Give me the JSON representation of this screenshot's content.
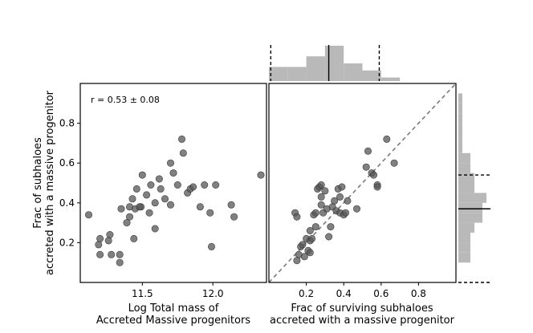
{
  "chart_data": [
    {
      "type": "scatter",
      "annotation": "r = 0.53 ± 0.08",
      "xlabel": [
        "Log Total mass of",
        "Accreted Massive progenitors"
      ],
      "ylabel": [
        "Frac of subhaloes",
        "accreted with a massive progenitor"
      ],
      "xticks": [
        "11.5",
        "12.0"
      ],
      "yticks": [
        "0.2",
        "0.4",
        "0.6",
        "0.8"
      ],
      "xlim": [
        11.06,
        12.38
      ],
      "ylim": [
        0.0,
        1.0
      ],
      "x": [
        11.12,
        11.2,
        11.19,
        11.2,
        11.27,
        11.26,
        11.28,
        11.34,
        11.34,
        11.35,
        11.39,
        11.41,
        11.41,
        11.44,
        11.43,
        11.46,
        11.45,
        11.49,
        11.48,
        11.5,
        11.53,
        11.55,
        11.56,
        11.59,
        11.59,
        11.62,
        11.63,
        11.66,
        11.7,
        11.7,
        11.72,
        11.75,
        11.78,
        11.79,
        11.82,
        11.84,
        11.86,
        11.91,
        11.94,
        11.98,
        11.99,
        12.02,
        12.13,
        12.15,
        12.34
      ],
      "y": [
        0.34,
        0.22,
        0.19,
        0.14,
        0.24,
        0.21,
        0.14,
        0.1,
        0.14,
        0.37,
        0.3,
        0.38,
        0.33,
        0.22,
        0.42,
        0.47,
        0.37,
        0.38,
        0.38,
        0.54,
        0.44,
        0.35,
        0.49,
        0.27,
        0.4,
        0.52,
        0.47,
        0.42,
        0.6,
        0.39,
        0.55,
        0.49,
        0.72,
        0.65,
        0.45,
        0.47,
        0.48,
        0.38,
        0.49,
        0.35,
        0.18,
        0.49,
        0.39,
        0.33,
        0.54
      ]
    },
    {
      "type": "scatter",
      "xlabel": [
        "Frac of surviving subhaloes",
        "accreted with a massive progenitor"
      ],
      "xticks": [
        "0.2",
        "0.4",
        "0.6",
        "0.8"
      ],
      "xlim": [
        0.0,
        1.0
      ],
      "ylim": [
        0.0,
        1.0
      ],
      "reference_line": "y = x",
      "x": [
        0.14,
        0.15,
        0.16,
        0.15,
        0.17,
        0.19,
        0.18,
        0.2,
        0.21,
        0.22,
        0.22,
        0.23,
        0.22,
        0.24,
        0.25,
        0.25,
        0.26,
        0.27,
        0.28,
        0.28,
        0.28,
        0.29,
        0.3,
        0.31,
        0.32,
        0.33,
        0.34,
        0.35,
        0.36,
        0.37,
        0.38,
        0.38,
        0.39,
        0.4,
        0.41,
        0.42,
        0.47,
        0.52,
        0.53,
        0.55,
        0.56,
        0.58,
        0.58,
        0.63,
        0.67
      ],
      "y": [
        0.35,
        0.33,
        0.14,
        0.11,
        0.18,
        0.13,
        0.19,
        0.22,
        0.16,
        0.21,
        0.26,
        0.22,
        0.15,
        0.34,
        0.28,
        0.35,
        0.47,
        0.48,
        0.49,
        0.39,
        0.43,
        0.35,
        0.46,
        0.37,
        0.23,
        0.28,
        0.38,
        0.41,
        0.36,
        0.47,
        0.43,
        0.35,
        0.48,
        0.34,
        0.35,
        0.41,
        0.37,
        0.58,
        0.66,
        0.55,
        0.54,
        0.49,
        0.48,
        0.72,
        0.6
      ],
      "top_histogram": {
        "bin_edges": [
          0.0,
          0.1,
          0.2,
          0.3,
          0.4,
          0.5,
          0.6,
          0.7
        ],
        "counts": [
          4,
          4,
          7,
          10,
          5,
          3,
          1
        ],
        "median": 0.32,
        "percentile_16": 0.01,
        "percentile_84": 0.59
      },
      "right_histogram": {
        "bin_edges": [
          0.1,
          0.15,
          0.2,
          0.25,
          0.3,
          0.35,
          0.4,
          0.45,
          0.5,
          0.55,
          0.6,
          0.65,
          0.7,
          0.75,
          0.8,
          0.85,
          0.9,
          0.95
        ],
        "counts": [
          3,
          3,
          3,
          4,
          6,
          6,
          7,
          4,
          4,
          3,
          3,
          1,
          1,
          1,
          1,
          1,
          1
        ],
        "median": 0.37,
        "percentile_16": 0.0,
        "percentile_84": 0.54
      }
    }
  ]
}
